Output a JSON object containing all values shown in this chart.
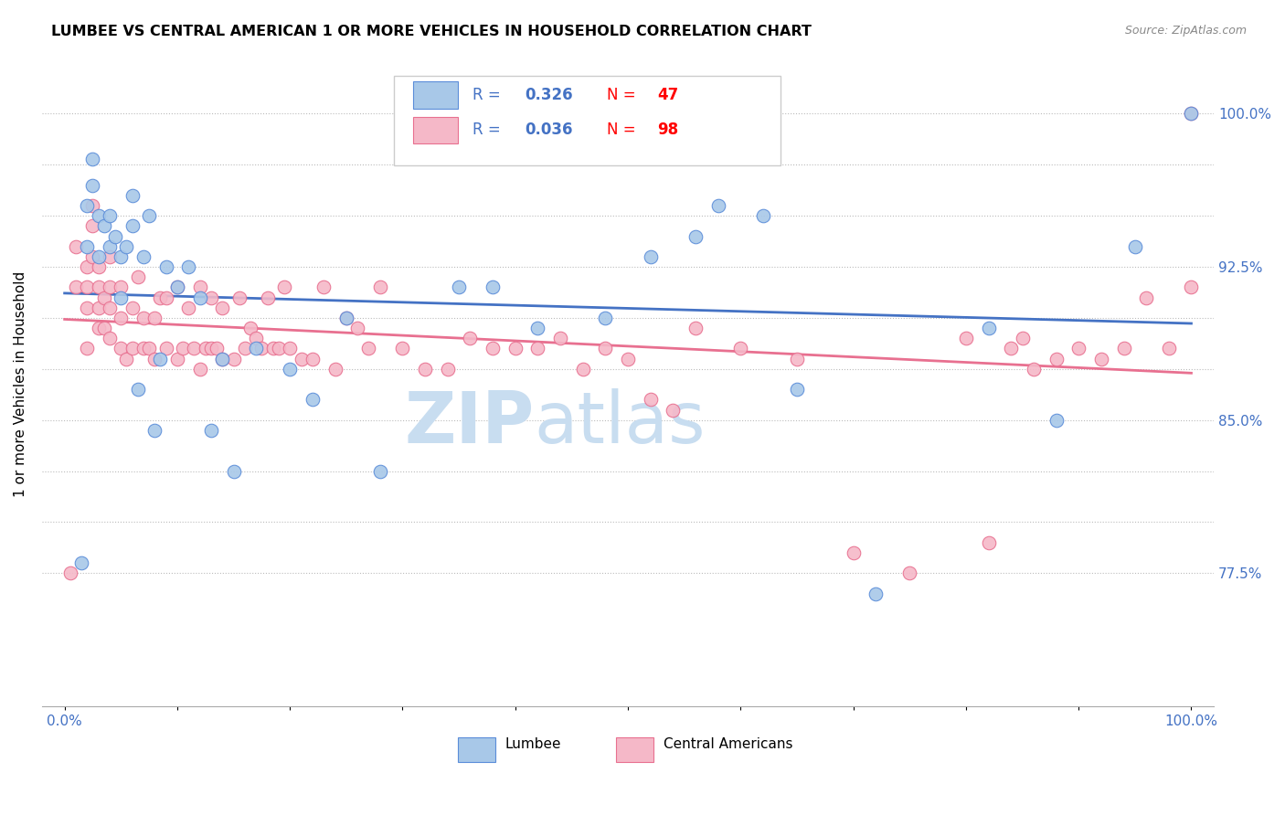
{
  "title": "LUMBEE VS CENTRAL AMERICAN 1 OR MORE VEHICLES IN HOUSEHOLD CORRELATION CHART",
  "source": "Source: ZipAtlas.com",
  "ylabel": "1 or more Vehicles in Household",
  "ymin": 71.0,
  "ymax": 102.5,
  "xmin": -0.02,
  "xmax": 1.02,
  "lumbee_R": 0.326,
  "lumbee_N": 47,
  "central_R": 0.036,
  "central_N": 98,
  "lumbee_color": "#A8C8E8",
  "central_color": "#F5B8C8",
  "lumbee_edge_color": "#5B8DD9",
  "central_edge_color": "#E87090",
  "lumbee_line_color": "#4472C4",
  "central_line_color": "#E87090",
  "watermark_color": "#C8DDF0",
  "tick_color": "#4472C4",
  "lumbee_x": [
    0.015,
    0.02,
    0.02,
    0.025,
    0.025,
    0.03,
    0.03,
    0.035,
    0.04,
    0.04,
    0.045,
    0.05,
    0.05,
    0.055,
    0.06,
    0.06,
    0.065,
    0.07,
    0.075,
    0.08,
    0.085,
    0.09,
    0.1,
    0.11,
    0.12,
    0.13,
    0.14,
    0.15,
    0.17,
    0.2,
    0.22,
    0.25,
    0.28,
    0.35,
    0.38,
    0.42,
    0.48,
    0.52,
    0.56,
    0.58,
    0.62,
    0.65,
    0.72,
    0.82,
    0.88,
    0.95,
    1.0
  ],
  "lumbee_y": [
    78.0,
    93.5,
    95.5,
    96.5,
    97.8,
    93.0,
    95.0,
    94.5,
    93.5,
    95.0,
    94.0,
    91.0,
    93.0,
    93.5,
    94.5,
    96.0,
    86.5,
    93.0,
    95.0,
    84.5,
    88.0,
    92.5,
    91.5,
    92.5,
    91.0,
    84.5,
    88.0,
    82.5,
    88.5,
    87.5,
    86.0,
    90.0,
    82.5,
    91.5,
    91.5,
    89.5,
    90.0,
    93.0,
    94.0,
    95.5,
    95.0,
    86.5,
    76.5,
    89.5,
    85.0,
    93.5,
    100.0
  ],
  "central_x": [
    0.005,
    0.01,
    0.01,
    0.02,
    0.02,
    0.02,
    0.02,
    0.025,
    0.025,
    0.025,
    0.03,
    0.03,
    0.03,
    0.03,
    0.035,
    0.035,
    0.04,
    0.04,
    0.04,
    0.04,
    0.05,
    0.05,
    0.05,
    0.055,
    0.06,
    0.06,
    0.065,
    0.07,
    0.07,
    0.075,
    0.08,
    0.08,
    0.085,
    0.09,
    0.09,
    0.1,
    0.1,
    0.105,
    0.11,
    0.115,
    0.12,
    0.12,
    0.125,
    0.13,
    0.13,
    0.135,
    0.14,
    0.14,
    0.15,
    0.155,
    0.16,
    0.165,
    0.17,
    0.175,
    0.18,
    0.185,
    0.19,
    0.195,
    0.2,
    0.21,
    0.22,
    0.23,
    0.24,
    0.25,
    0.26,
    0.27,
    0.28,
    0.3,
    0.32,
    0.34,
    0.36,
    0.38,
    0.4,
    0.42,
    0.44,
    0.46,
    0.48,
    0.5,
    0.52,
    0.54,
    0.56,
    0.6,
    0.65,
    0.7,
    0.75,
    0.8,
    0.82,
    0.84,
    0.85,
    0.86,
    0.88,
    0.9,
    0.92,
    0.94,
    0.96,
    0.98,
    1.0,
    1.0
  ],
  "central_y": [
    77.5,
    91.5,
    93.5,
    88.5,
    90.5,
    91.5,
    92.5,
    93.0,
    94.5,
    95.5,
    89.5,
    90.5,
    91.5,
    92.5,
    89.5,
    91.0,
    89.0,
    90.5,
    91.5,
    93.0,
    88.5,
    90.0,
    91.5,
    88.0,
    88.5,
    90.5,
    92.0,
    88.5,
    90.0,
    88.5,
    88.0,
    90.0,
    91.0,
    88.5,
    91.0,
    88.0,
    91.5,
    88.5,
    90.5,
    88.5,
    87.5,
    91.5,
    88.5,
    88.5,
    91.0,
    88.5,
    88.0,
    90.5,
    88.0,
    91.0,
    88.5,
    89.5,
    89.0,
    88.5,
    91.0,
    88.5,
    88.5,
    91.5,
    88.5,
    88.0,
    88.0,
    91.5,
    87.5,
    90.0,
    89.5,
    88.5,
    91.5,
    88.5,
    87.5,
    87.5,
    89.0,
    88.5,
    88.5,
    88.5,
    89.0,
    87.5,
    88.5,
    88.0,
    86.0,
    85.5,
    89.5,
    88.5,
    88.0,
    78.5,
    77.5,
    89.0,
    79.0,
    88.5,
    89.0,
    87.5,
    88.0,
    88.5,
    88.0,
    88.5,
    91.0,
    88.5,
    91.5,
    100.0
  ]
}
